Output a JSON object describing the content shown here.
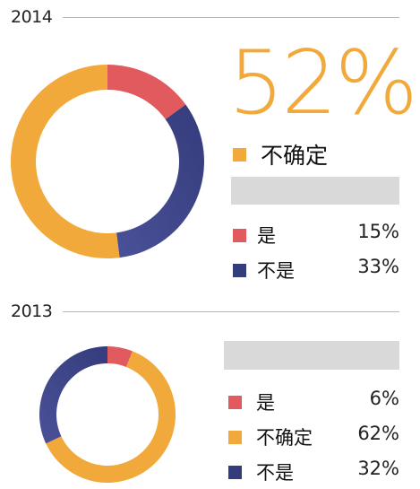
{
  "colors": {
    "yes": "#e05a5e",
    "unsure": "#f2a93b",
    "no": "#343c7c",
    "no_light": "#4a5198",
    "rule": "#b8b8b8",
    "bar": "#d9d9d9"
  },
  "chart_data": [
    {
      "type": "pie",
      "variant": "donut",
      "title": "2014",
      "highlight": {
        "value_label": "52%",
        "category": "不确定"
      },
      "slices": [
        {
          "label": "是",
          "value": 15,
          "value_label": "15%",
          "color_key": "yes"
        },
        {
          "label": "不是",
          "value": 33,
          "value_label": "33%",
          "color_key": "no"
        },
        {
          "label": "不确定",
          "value": 52,
          "value_label": "52%",
          "color_key": "unsure"
        }
      ]
    },
    {
      "type": "pie",
      "variant": "donut",
      "title": "2013",
      "slices": [
        {
          "label": "是",
          "value": 6,
          "value_label": "6%",
          "color_key": "yes"
        },
        {
          "label": "不确定",
          "value": 62,
          "value_label": "62%",
          "color_key": "unsure"
        },
        {
          "label": "不是",
          "value": 32,
          "value_label": "32%",
          "color_key": "no"
        }
      ]
    }
  ]
}
